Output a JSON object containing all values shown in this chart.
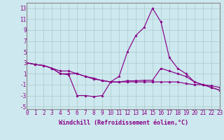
{
  "bg_color": "#cde8ee",
  "line_color": "#880088",
  "grid_color": "#aacccc",
  "xlim": [
    0,
    23
  ],
  "ylim": [
    -5.5,
    14
  ],
  "xticks": [
    0,
    1,
    2,
    3,
    4,
    5,
    6,
    7,
    8,
    9,
    10,
    11,
    12,
    13,
    14,
    15,
    16,
    17,
    18,
    19,
    20,
    21,
    22,
    23
  ],
  "yticks": [
    -5,
    -3,
    -1,
    1,
    3,
    5,
    7,
    9,
    11,
    13
  ],
  "xlabel": "Windchill (Refroidissement éolien,°C)",
  "series1_x": [
    0,
    1,
    2,
    3,
    4,
    5,
    6,
    7,
    8,
    9,
    10,
    11,
    12,
    13,
    14,
    15,
    16,
    17,
    18,
    19,
    20,
    21,
    22,
    23
  ],
  "series1_y": [
    3,
    2.7,
    2.5,
    2.0,
    1.5,
    1.5,
    1.0,
    0.5,
    0.0,
    -0.2,
    -0.5,
    -0.5,
    -0.5,
    -0.5,
    -0.5,
    -0.5,
    -0.5,
    -0.5,
    -0.5,
    -0.8,
    -1.0,
    -1.0,
    -1.2,
    -1.5
  ],
  "series2_x": [
    0,
    1,
    2,
    3,
    4,
    5,
    6,
    7,
    8,
    9,
    10,
    11,
    12,
    13,
    14,
    15,
    16,
    17,
    18,
    19,
    20,
    21,
    22,
    23
  ],
  "series2_y": [
    3,
    2.7,
    2.5,
    2.0,
    1.0,
    0.8,
    -3.0,
    -3.0,
    -3.2,
    -3.0,
    -0.5,
    0.5,
    5.0,
    8.0,
    9.5,
    13.0,
    10.5,
    4.0,
    2.0,
    1.0,
    -0.5,
    -1.0,
    -1.5,
    -2.0
  ],
  "series3_x": [
    0,
    1,
    2,
    3,
    4,
    5,
    6,
    7,
    8,
    9,
    10,
    11,
    12,
    13,
    14,
    15,
    16,
    17,
    18,
    19,
    20,
    21,
    22,
    23
  ],
  "series3_y": [
    3,
    2.7,
    2.5,
    2.0,
    1.0,
    1.0,
    1.0,
    0.5,
    0.2,
    -0.3,
    -0.5,
    -0.5,
    -0.3,
    -0.3,
    -0.2,
    -0.2,
    2.0,
    1.5,
    1.0,
    0.5,
    -0.5,
    -1.0,
    -1.5,
    -2.0
  ],
  "tick_fontsize": 5.5,
  "xlabel_fontsize": 6.0
}
